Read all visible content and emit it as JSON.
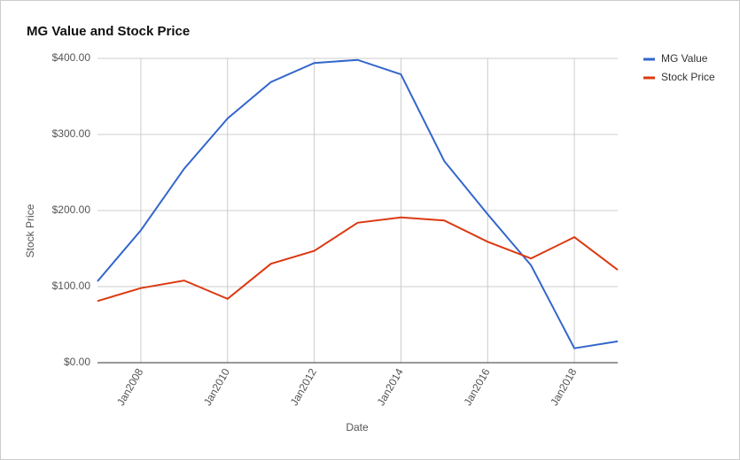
{
  "chart_data": {
    "type": "line",
    "title": "MG Value and Stock Price",
    "x_label": "Date",
    "y_label": "Stock Price",
    "x": [
      2007,
      2008,
      2009,
      2010,
      2011,
      2012,
      2013,
      2014,
      2015,
      2016,
      2017,
      2018,
      2019
    ],
    "xlim": [
      2007,
      2019
    ],
    "xticks": [
      {
        "value": 2008,
        "label": "Jan2008"
      },
      {
        "value": 2010,
        "label": "Jan2010"
      },
      {
        "value": 2012,
        "label": "Jan2012"
      },
      {
        "value": 2014,
        "label": "Jan2014"
      },
      {
        "value": 2016,
        "label": "Jan2016"
      },
      {
        "value": 2018,
        "label": "Jan2018"
      }
    ],
    "ylim": [
      0,
      400
    ],
    "yticks": [
      {
        "value": 0,
        "label": "$0.00"
      },
      {
        "value": 100,
        "label": "$100.00"
      },
      {
        "value": 200,
        "label": "$200.00"
      },
      {
        "value": 300,
        "label": "$300.00"
      },
      {
        "value": 400,
        "label": "$400.00"
      }
    ],
    "grid": true,
    "legend": "right",
    "series": [
      {
        "name": "MG Value",
        "color": "#3366cc",
        "values": [
          107,
          174,
          255,
          321,
          369,
          394,
          398,
          379,
          265,
          195,
          128,
          19,
          28
        ]
      },
      {
        "name": "Stock Price",
        "color": "#dc3912",
        "values": [
          81,
          98,
          108,
          84,
          130,
          147,
          184,
          191,
          187,
          159,
          137,
          165,
          122
        ]
      }
    ]
  }
}
